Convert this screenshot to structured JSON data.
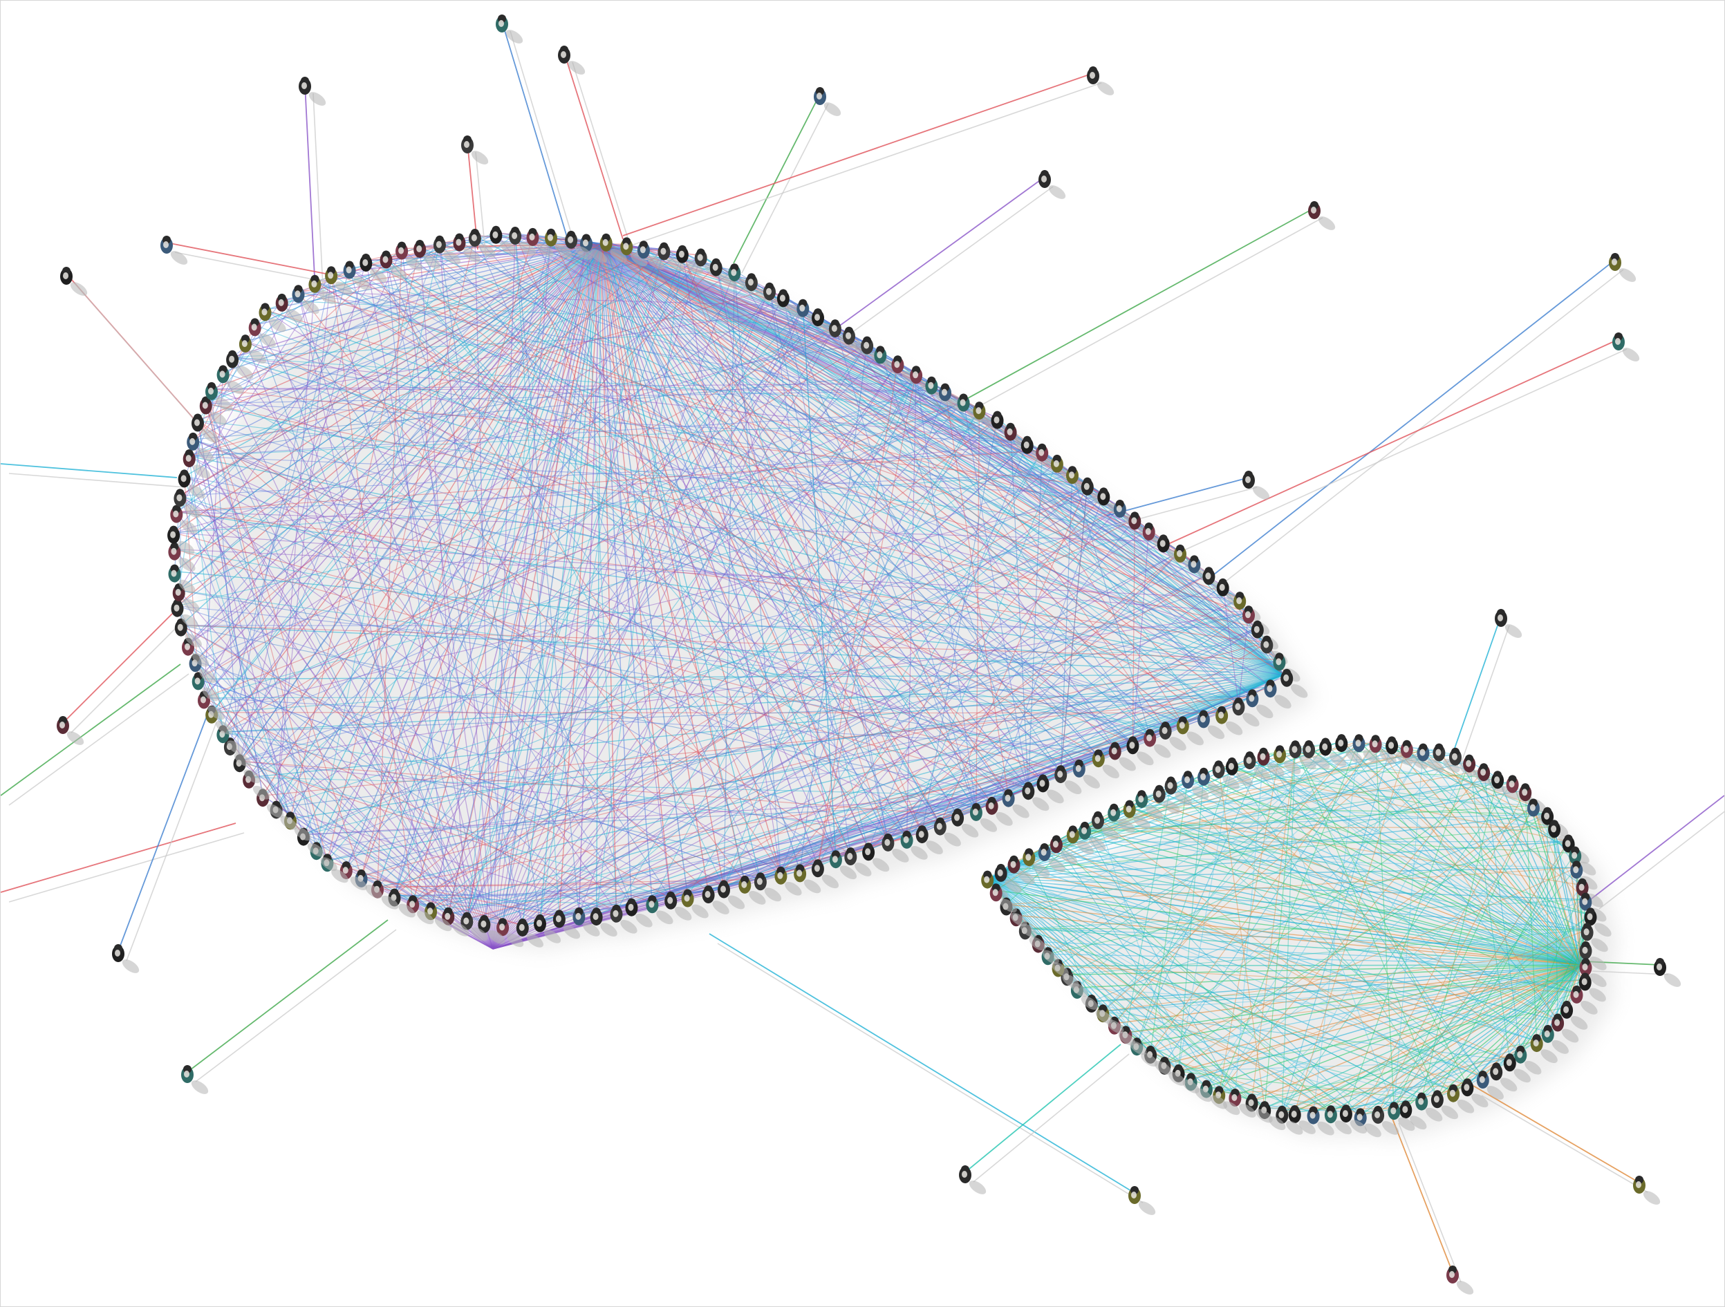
{
  "scene": {
    "description_kind": "photo-illustration",
    "colors": {
      "background": "#ffffff",
      "frame_border": "#d6d6d6",
      "large_group_threads": [
        "#3f7fd0",
        "#8a55c8",
        "#23b3d6",
        "#e0525a",
        "#5a7ae0"
      ],
      "small_group_threads": [
        "#22c4b0",
        "#25c96a",
        "#1fb0d8",
        "#e08a3a",
        "#54c8e8"
      ],
      "outlier_threads": [
        "#e0525a",
        "#8a55c8",
        "#3fa84a",
        "#3f7fd0",
        "#23b3d6",
        "#e08a3a"
      ],
      "shadow": "#c9c9c9",
      "people": [
        "#3a3a3a",
        "#5a2c36",
        "#2f6b66",
        "#6a6a2a",
        "#2a2a2a",
        "#7a3a4a",
        "#3b5a7a",
        "#1f1f1f"
      ]
    }
  }
}
